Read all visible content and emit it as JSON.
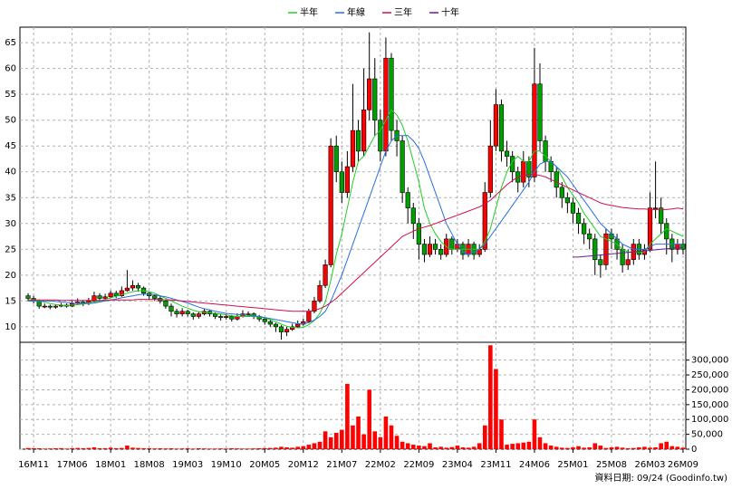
{
  "chart_data": [
    {
      "type": "candlestick",
      "categories": [
        null,
        "16M11",
        null,
        null,
        null,
        null,
        null,
        null,
        "17M06",
        null,
        null,
        null,
        null,
        null,
        null,
        "18M01",
        null,
        null,
        null,
        null,
        null,
        null,
        "18M08",
        null,
        null,
        null,
        null,
        null,
        null,
        "19M03",
        null,
        null,
        null,
        null,
        null,
        null,
        "19M10",
        null,
        null,
        null,
        null,
        null,
        null,
        "20M05",
        null,
        null,
        null,
        null,
        null,
        null,
        "20M12",
        null,
        null,
        null,
        null,
        null,
        null,
        "21M07",
        null,
        null,
        null,
        null,
        null,
        null,
        "22M02",
        null,
        null,
        null,
        null,
        null,
        null,
        "22M09",
        null,
        null,
        null,
        null,
        null,
        null,
        "23M04",
        null,
        null,
        null,
        null,
        null,
        null,
        "23M11",
        null,
        null,
        null,
        null,
        null,
        null,
        "24M06",
        null,
        null,
        null,
        null,
        null,
        null,
        "25M01",
        null,
        null,
        null,
        null,
        null,
        null,
        "25M08",
        null,
        null,
        null,
        null,
        null,
        null,
        "26M03",
        null,
        null,
        null,
        null,
        null,
        "26M09"
      ],
      "open": [
        16,
        15.5,
        15,
        14,
        14,
        13.8,
        14,
        14.2,
        14,
        14.5,
        14.8,
        14.5,
        15,
        16,
        15.5,
        15.8,
        16.5,
        16,
        17,
        17.5,
        18,
        17.5,
        16.5,
        16,
        15.5,
        15,
        14,
        13,
        12.5,
        13,
        12.5,
        12,
        12.5,
        13,
        12.5,
        12,
        11.8,
        12,
        11.5,
        12,
        12.5,
        12.5,
        12,
        11.5,
        11,
        10.5,
        10,
        9,
        9.5,
        10,
        10.5,
        11,
        13,
        15,
        18,
        22,
        45,
        40,
        36,
        41,
        48,
        44,
        52,
        58,
        50,
        44,
        62,
        48,
        46,
        36,
        33,
        30,
        26,
        24,
        26,
        25,
        24,
        27,
        25,
        26,
        24,
        26,
        24,
        25,
        36,
        45,
        53,
        44,
        43,
        40,
        38,
        42,
        39,
        57,
        46,
        42,
        40,
        37,
        35,
        34,
        32,
        30,
        28,
        27,
        23,
        22,
        28,
        27,
        25,
        22,
        23,
        26,
        24,
        25,
        33,
        33,
        30,
        27,
        25,
        26
      ],
      "high": [
        16.5,
        16,
        15.3,
        14.5,
        14.3,
        14.4,
        14.6,
        14.5,
        15,
        15.5,
        15.2,
        15.6,
        16.8,
        16.5,
        16.4,
        17,
        17,
        17.8,
        21,
        19,
        18.5,
        17.8,
        16.8,
        16.3,
        16,
        15.3,
        14.5,
        13.5,
        13.6,
        13.3,
        12.8,
        13,
        13.5,
        13.2,
        12.8,
        12.4,
        12.5,
        12.3,
        12.6,
        13.2,
        13,
        12.8,
        12.3,
        11.8,
        11.3,
        10.8,
        10.3,
        10,
        10.6,
        11.2,
        11.6,
        13.5,
        15.8,
        19,
        23,
        46.5,
        47,
        42,
        44,
        57,
        50,
        60,
        67,
        62,
        52,
        66,
        63,
        50,
        47,
        37,
        34,
        31,
        27,
        27.5,
        27,
        26,
        28,
        27.5,
        27,
        26.5,
        27,
        26.5,
        26,
        38,
        50,
        56,
        54,
        46,
        44,
        41,
        44,
        43,
        64,
        61,
        47,
        43,
        41,
        38,
        36,
        35,
        33,
        31,
        29,
        28,
        24,
        29,
        29,
        28,
        26,
        25,
        27,
        27,
        26,
        36,
        42,
        35,
        31,
        28,
        27,
        27
      ],
      "low": [
        15,
        14.5,
        13.5,
        13.6,
        13.4,
        13.5,
        13.8,
        13.7,
        13.8,
        14.2,
        14,
        14.2,
        14.8,
        15,
        15.2,
        15.5,
        15.6,
        15.8,
        16.8,
        17,
        16.8,
        16,
        15.2,
        15,
        14.5,
        13.5,
        12,
        11.8,
        12,
        12,
        11.4,
        11.6,
        12.2,
        12,
        11.5,
        11.2,
        11.4,
        11,
        11.2,
        11.8,
        12,
        11.5,
        11,
        10.4,
        10,
        9,
        7.5,
        8.2,
        9.2,
        9.8,
        10.2,
        10.8,
        12.6,
        14.6,
        17.5,
        21.5,
        38,
        34,
        35,
        40,
        42,
        43,
        50,
        47,
        42,
        43,
        46,
        43,
        34,
        30,
        27,
        23,
        22.5,
        23.5,
        24,
        23,
        23.5,
        24,
        24.5,
        23,
        23.5,
        23,
        23.5,
        24.5,
        35,
        44,
        42,
        41,
        38,
        36,
        37,
        37,
        38,
        44,
        40,
        38,
        35,
        33,
        32,
        30,
        28,
        26,
        25,
        20,
        19.5,
        21,
        25,
        23,
        20.5,
        21,
        22,
        23,
        23,
        24.5,
        31,
        28,
        24,
        22.5,
        24,
        24
      ],
      "close": [
        15.5,
        15,
        14,
        14,
        13.8,
        14,
        14.2,
        14,
        14.5,
        14.8,
        14.5,
        15,
        16,
        15.5,
        15.8,
        16.5,
        16,
        17,
        17.5,
        18,
        17.5,
        16.5,
        16,
        15.5,
        15,
        14,
        13,
        12.5,
        13,
        12.5,
        12,
        12.5,
        13,
        12.5,
        12,
        11.8,
        12,
        11.5,
        12,
        12.5,
        12.5,
        12,
        11.5,
        11,
        10.5,
        10,
        9,
        9.5,
        10,
        10.5,
        11,
        13,
        15,
        18,
        22,
        45,
        40,
        36,
        41,
        48,
        44,
        52,
        58,
        50,
        44,
        62,
        48,
        46,
        36,
        33,
        30,
        26,
        24,
        26,
        25,
        24,
        27,
        25,
        26,
        24,
        26,
        24,
        25,
        36,
        45,
        53,
        44,
        43,
        40,
        38,
        42,
        39,
        57,
        46,
        42,
        40,
        37,
        35,
        34,
        32,
        30,
        28,
        27,
        23,
        22,
        28,
        27,
        25,
        22,
        23,
        26,
        24,
        25,
        33,
        33,
        30,
        27,
        25,
        26,
        25
      ],
      "up_color": "#ff0000",
      "down_color": "#00a000",
      "series": [
        {
          "name": "半年",
          "color": "#22cc22",
          "values": [
            15,
            15,
            15,
            14.8,
            14.5,
            14.3,
            14.2,
            14.1,
            14.2,
            14.3,
            14.4,
            14.6,
            14.8,
            15,
            15.3,
            15.6,
            15.9,
            16.2,
            16.5,
            16.8,
            17,
            17,
            16.8,
            16.5,
            16,
            15.5,
            15,
            14.5,
            14,
            13.6,
            13.2,
            12.9,
            12.8,
            12.7,
            12.6,
            12.5,
            12.3,
            12.1,
            12,
            12,
            12,
            12,
            11.9,
            11.7,
            11.4,
            11,
            10.5,
            10.1,
            9.9,
            9.8,
            9.9,
            10.4,
            11.2,
            12.6,
            14.8,
            19,
            24,
            28,
            33,
            38,
            42,
            43,
            45,
            47,
            48,
            50,
            52,
            51,
            49,
            46,
            42,
            38,
            33,
            30,
            28,
            26.5,
            25.5,
            25,
            25,
            25,
            25,
            25,
            25,
            26.5,
            29,
            33,
            37,
            40,
            42,
            43,
            42,
            42,
            44,
            44,
            43,
            42,
            41,
            39,
            37,
            35.5,
            34,
            32,
            30.5,
            29,
            27.5,
            27,
            26.5,
            26,
            25,
            24.5,
            24.5,
            24.5,
            24.5,
            26,
            27,
            28,
            29,
            28.5,
            28,
            27.5
          ]
        },
        {
          "name": "年線",
          "color": "#2a6fe0",
          "values": [
            15,
            15,
            15,
            15,
            15,
            14.9,
            14.8,
            14.7,
            14.6,
            14.5,
            14.5,
            14.5,
            14.6,
            14.8,
            15,
            15.2,
            15.4,
            15.6,
            15.8,
            16,
            16.2,
            16.3,
            16.3,
            16.2,
            16,
            15.8,
            15.5,
            15.2,
            14.9,
            14.6,
            14.2,
            13.8,
            13.5,
            13.3,
            13,
            12.8,
            12.6,
            12.5,
            12.4,
            12.3,
            12.2,
            12.1,
            12,
            11.8,
            11.6,
            11.4,
            11.2,
            11,
            10.8,
            10.6,
            10.6,
            10.8,
            11.3,
            12,
            13,
            15,
            17.5,
            20,
            23,
            26,
            29,
            32,
            35,
            38,
            41,
            44,
            46,
            47,
            47,
            47,
            46,
            44.5,
            42,
            39,
            36,
            33,
            30,
            28,
            26,
            24.5,
            24,
            24.5,
            25,
            26,
            27.5,
            29,
            30.5,
            32,
            33.5,
            35,
            36.5,
            38,
            40,
            41.5,
            42,
            42,
            41,
            40,
            39,
            37.5,
            36,
            34.5,
            33,
            31.5,
            30,
            29,
            28,
            27,
            26,
            25.5,
            25,
            25,
            25,
            25.5,
            26,
            26,
            26,
            26,
            26,
            26
          ]
        },
        {
          "name": "三年",
          "color": "#d0104c",
          "values": [
            15.2,
            15.2,
            15.2,
            15.2,
            15.2,
            15.2,
            15.1,
            15.1,
            15.1,
            15.1,
            15.1,
            15.1,
            15.1,
            15.1,
            15.1,
            15.2,
            15.2,
            15.2,
            15.2,
            15.2,
            15.3,
            15.3,
            15.3,
            15.3,
            15.3,
            15.2,
            15.2,
            15.1,
            15,
            14.9,
            14.8,
            14.7,
            14.6,
            14.5,
            14.4,
            14.3,
            14.2,
            14.1,
            14,
            13.9,
            13.8,
            13.7,
            13.6,
            13.5,
            13.4,
            13.3,
            13.2,
            13.1,
            13,
            13,
            13,
            13,
            13.2,
            13.5,
            14,
            14.7,
            15.5,
            16.5,
            17.5,
            18.5,
            19.5,
            20.5,
            21.5,
            22.5,
            23.5,
            24.5,
            25.5,
            26.5,
            27.5,
            28,
            28.5,
            29,
            29.3,
            29.6,
            30,
            30.4,
            30.8,
            31.2,
            31.6,
            32,
            32.4,
            32.8,
            33.2,
            33.8,
            34.5,
            35.5,
            36.5,
            37.5,
            38.3,
            39,
            39.3,
            39.5,
            39.5,
            39.3,
            39,
            38.5,
            38,
            37.5,
            37,
            36.5,
            36,
            35.5,
            35,
            34.5,
            34,
            33.7,
            33.5,
            33.3,
            33.1,
            33,
            32.9,
            32.8,
            32.8,
            32.7,
            32.7,
            32.7,
            32.7,
            32.8,
            33,
            32.8
          ]
        },
        {
          "name": "十年",
          "color": "#6a1b9a",
          "values": [
            null,
            null,
            null,
            null,
            null,
            null,
            null,
            null,
            null,
            null,
            null,
            null,
            null,
            null,
            null,
            null,
            null,
            null,
            null,
            null,
            null,
            null,
            null,
            null,
            null,
            null,
            null,
            null,
            null,
            null,
            null,
            null,
            null,
            null,
            null,
            null,
            null,
            null,
            null,
            null,
            null,
            null,
            null,
            null,
            null,
            null,
            null,
            null,
            null,
            null,
            null,
            null,
            null,
            null,
            null,
            null,
            null,
            null,
            null,
            null,
            null,
            null,
            null,
            null,
            null,
            null,
            null,
            null,
            null,
            null,
            null,
            null,
            null,
            null,
            null,
            null,
            null,
            null,
            null,
            null,
            null,
            null,
            null,
            null,
            null,
            null,
            null,
            null,
            null,
            null,
            null,
            null,
            null,
            null,
            null,
            null,
            null,
            null,
            null,
            23.5,
            23.5,
            23.6,
            23.7,
            23.8,
            23.9,
            24,
            24.1,
            24.2,
            24.3,
            24.4,
            24.5,
            24.6,
            24.7,
            24.8,
            24.9,
            25,
            25.1,
            25.2,
            25.3,
            25.3
          ]
        }
      ],
      "ylim": [
        7,
        68
      ],
      "yticks": [
        10,
        15,
        20,
        25,
        30,
        35,
        40,
        45,
        50,
        55,
        60,
        65
      ],
      "grid": true,
      "footer": "資料日期: 09/24 (Goodinfo.tw)"
    },
    {
      "type": "bar",
      "color": "#ff0000",
      "values": [
        4000,
        3000,
        3000,
        2000,
        2500,
        3000,
        3500,
        2000,
        3000,
        4000,
        3000,
        4000,
        6000,
        3000,
        3000,
        5000,
        3000,
        4000,
        12000,
        5000,
        4000,
        3000,
        3000,
        2500,
        3000,
        2500,
        3000,
        2000,
        2500,
        3000,
        2000,
        3000,
        2500,
        2000,
        2000,
        2500,
        2000,
        3000,
        2500,
        2000,
        2000,
        2500,
        3000,
        3500,
        4000,
        5000,
        8000,
        6000,
        5000,
        8000,
        10000,
        15000,
        20000,
        25000,
        60000,
        40000,
        55000,
        65000,
        220000,
        80000,
        110000,
        50000,
        200000,
        60000,
        40000,
        110000,
        80000,
        45000,
        25000,
        20000,
        15000,
        12000,
        10000,
        20000,
        6000,
        8000,
        5000,
        7000,
        12000,
        6000,
        5000,
        8000,
        20000,
        80000,
        350000,
        270000,
        100000,
        15000,
        18000,
        20000,
        22000,
        25000,
        100000,
        40000,
        20000,
        12000,
        8000,
        5000,
        4000,
        6000,
        10000,
        5000,
        6000,
        20000,
        12000,
        4000,
        6000,
        8000,
        5000,
        3000,
        4000,
        6000,
        8000,
        5000,
        6000,
        20000,
        25000,
        10000,
        8000,
        5000
      ],
      "ylim": [
        0,
        360000
      ],
      "yticks": [
        0,
        {
          "value": 50000,
          "label": "50,000"
        },
        {
          "value": 100000,
          "label": "100,000"
        },
        {
          "value": 150000,
          "label": "150,000"
        },
        {
          "value": 200000,
          "label": "200,000"
        },
        {
          "value": 250000,
          "label": "250,000"
        },
        {
          "value": 300000,
          "label": "300,000"
        }
      ],
      "grid": true
    }
  ]
}
